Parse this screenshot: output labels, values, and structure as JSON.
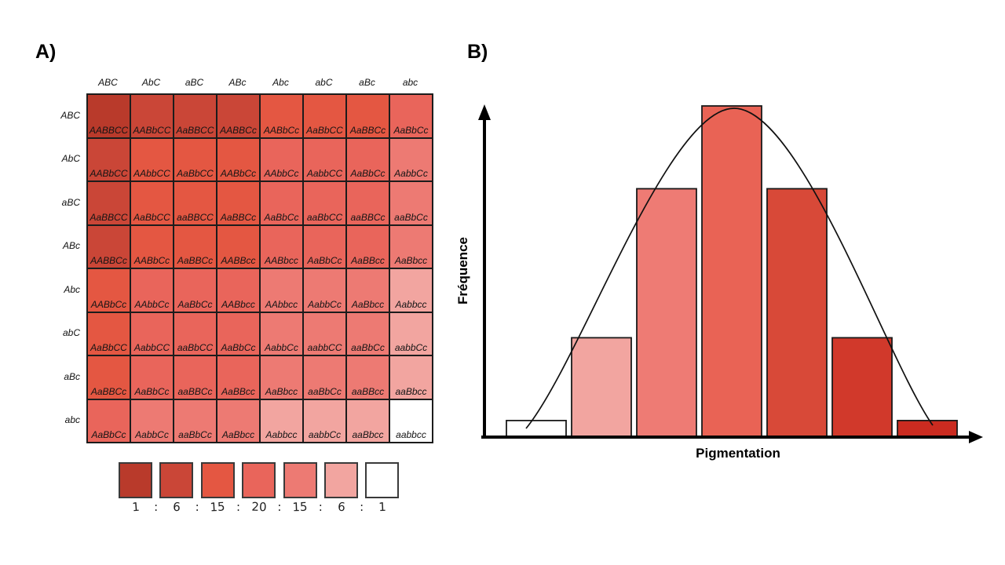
{
  "panel_a": {
    "label": "A)",
    "punnett": {
      "col_headers": [
        "ABC",
        "AbC",
        "aBC",
        "ABc",
        "Abc",
        "abC",
        "aBc",
        "abc"
      ],
      "row_headers": [
        "ABC",
        "AbC",
        "aBC",
        "ABc",
        "Abc",
        "abC",
        "aBc",
        "abc"
      ],
      "rows": [
        [
          "AABBCC",
          "AABbCC",
          "AaBBCC",
          "AABBCc",
          "AABbCc",
          "AaBbCC",
          "AaBBCc",
          "AaBbCc"
        ],
        [
          "AABbCC",
          "AAbbCC",
          "AaBbCC",
          "AABbCc",
          "AAbbCc",
          "AabbCC",
          "AaBbCc",
          "AabbCc"
        ],
        [
          "AaBBCC",
          "AaBbCC",
          "aaBBCC",
          "AaBBCc",
          "AaBbCc",
          "aaBbCC",
          "aaBBCc",
          "aaBbCc"
        ],
        [
          "AABBCc",
          "AABbCc",
          "AaBBCc",
          "AABBcc",
          "AABbcc",
          "AaBbCc",
          "AaBBcc",
          "AaBbcc"
        ],
        [
          "AABbCc",
          "AAbbCc",
          "AaBbCc",
          "AABbcc",
          "AAbbcc",
          "AabbCc",
          "AaBbcc",
          "Aabbcc"
        ],
        [
          "AaBbCC",
          "AabbCC",
          "aaBbCC",
          "AaBbCc",
          "AabbCc",
          "aabbCC",
          "aaBbCc",
          "aabbCc"
        ],
        [
          "AaBBCc",
          "AaBbCc",
          "aaBBCc",
          "AaBBcc",
          "AaBbcc",
          "aaBbCc",
          "aaBBcc",
          "aaBbcc"
        ],
        [
          "AaBbCc",
          "AabbCc",
          "aaBbCc",
          "AaBbcc",
          "Aabbcc",
          "aabbCc",
          "aaBbcc",
          "aabbcc"
        ]
      ],
      "palette_by_dominant_count": {
        "6": "#B93A2B",
        "5": "#CA4637",
        "4": "#E45742",
        "3": "#E9655B",
        "2": "#ED7A73",
        "1": "#F2A5A0",
        "0": "#FFFFFF"
      }
    },
    "legend": {
      "swatches": [
        "#B93A2B",
        "#CA4637",
        "#E45742",
        "#E9655B",
        "#ED7A73",
        "#F2A5A0",
        "#FFFFFF"
      ],
      "ratio": [
        "1",
        "6",
        "15",
        "20",
        "15",
        "6",
        "1"
      ],
      "separator": ":"
    }
  },
  "panel_b": {
    "label": "B)",
    "ylabel": "Fréquence",
    "xlabel": "Pigmentation"
  },
  "chart_data": {
    "type": "bar",
    "title": "",
    "xlabel": "Pigmentation",
    "ylabel": "Fréquence",
    "values": [
      1,
      6,
      15,
      20,
      15,
      6,
      1
    ],
    "bar_colors": [
      "#FFFFFF",
      "#F2A5A0",
      "#EE7B74",
      "#E96355",
      "#D84938",
      "#D1392B",
      "#CB2B20"
    ],
    "ylim": [
      0,
      21
    ],
    "axis_ticks": "none",
    "grid": "off",
    "legend_position": "none",
    "overlay": "bell-curve"
  }
}
